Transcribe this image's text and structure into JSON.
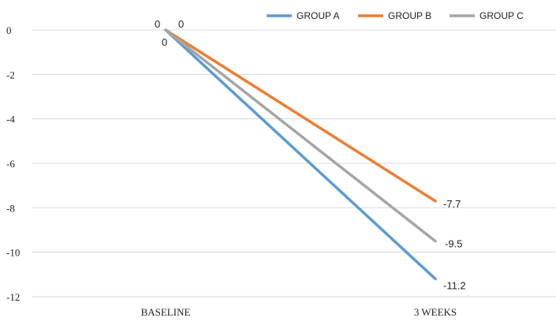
{
  "chart_data": {
    "type": "line",
    "title": "",
    "xlabel": "",
    "ylabel": "",
    "categories": [
      "BASELINE",
      "3 WEEKS"
    ],
    "ylim": [
      -12,
      0
    ],
    "yticks": [
      0,
      -2,
      -4,
      -6,
      -8,
      -10,
      -12
    ],
    "grid": true,
    "legend_position": "top-right",
    "series": [
      {
        "name": "GROUP A",
        "values": [
          0,
          -11.2
        ],
        "labels": [
          "0",
          "-11.2"
        ],
        "color": "#5b9bd5"
      },
      {
        "name": "GROUP B",
        "values": [
          0,
          -7.7
        ],
        "labels": [
          "0",
          "-7.7"
        ],
        "color": "#ed7d31"
      },
      {
        "name": "GROUP C",
        "values": [
          0,
          -9.5
        ],
        "labels": [
          "0",
          "-9.5"
        ],
        "color": "#a5a5a5"
      }
    ]
  }
}
